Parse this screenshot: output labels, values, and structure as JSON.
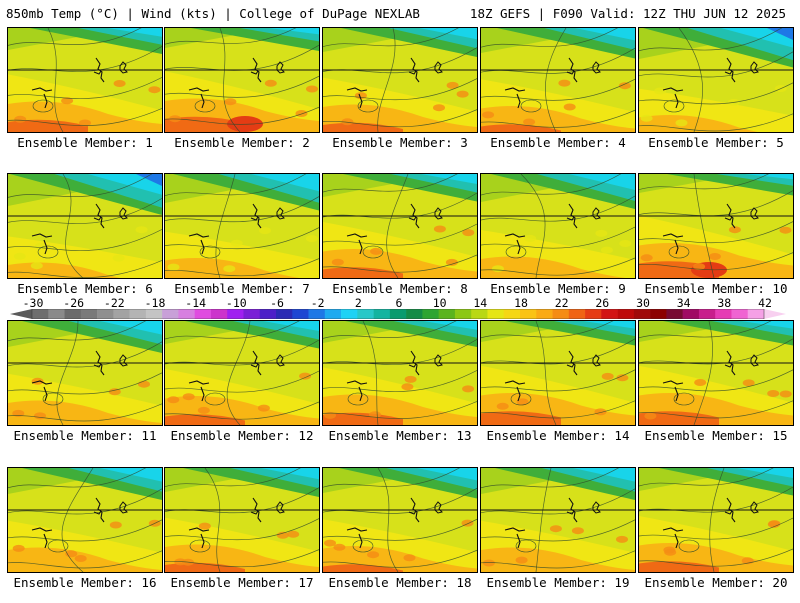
{
  "header": {
    "left_text": "850mb Temp (°C) | Wind (kts) | College of DuPage NEXLAB",
    "right_text": "18Z GEFS | F090 Valid: 12Z THU JUN 12 2025"
  },
  "members": [
    {
      "label": "Ensemble Member: 1",
      "warm": 0.8
    },
    {
      "label": "Ensemble Member: 2",
      "warm": 0.9
    },
    {
      "label": "Ensemble Member: 3",
      "warm": 0.7
    },
    {
      "label": "Ensemble Member: 4",
      "warm": 0.65
    },
    {
      "label": "Ensemble Member: 5",
      "warm": 0.35
    },
    {
      "label": "Ensemble Member: 6",
      "warm": 0.3
    },
    {
      "label": "Ensemble Member: 7",
      "warm": 0.45
    },
    {
      "label": "Ensemble Member: 8",
      "warm": 0.75
    },
    {
      "label": "Ensemble Member: 9",
      "warm": 0.5
    },
    {
      "label": "Ensemble Member: 10",
      "warm": 0.95
    },
    {
      "label": "Ensemble Member: 11",
      "warm": 0.6
    },
    {
      "label": "Ensemble Member: 12",
      "warm": 0.75
    },
    {
      "label": "Ensemble Member: 13",
      "warm": 0.8
    },
    {
      "label": "Ensemble Member: 14",
      "warm": 0.85
    },
    {
      "label": "Ensemble Member: 15",
      "warm": 0.85
    },
    {
      "label": "Ensemble Member: 16",
      "warm": 0.6
    },
    {
      "label": "Ensemble Member: 17",
      "warm": 0.7
    },
    {
      "label": "Ensemble Member: 18",
      "warm": 0.65
    },
    {
      "label": "Ensemble Member: 19",
      "warm": 0.6
    },
    {
      "label": "Ensemble Member: 20",
      "warm": 0.75
    }
  ],
  "scale": {
    "tick_labels": [
      "-30",
      "-26",
      "-22",
      "-18",
      "-14",
      "-10",
      "-6",
      "-2",
      "2",
      "6",
      "10",
      "14",
      "18",
      "22",
      "26",
      "30",
      "34",
      "38",
      "42"
    ],
    "bins": [
      "#6e6e6e",
      "#8a8a8a",
      "#6b6b6b",
      "#7a7a7a",
      "#8f8f8f",
      "#a3a3a3",
      "#b4b4b4",
      "#c4c4c4",
      "#c8a0d8",
      "#d77fe0",
      "#e04ce0",
      "#cc33cc",
      "#a020f0",
      "#7a1fd6",
      "#4c1fc8",
      "#2a2ab4",
      "#1e46d2",
      "#1e78e6",
      "#1eaaf0",
      "#1ed2f5",
      "#28c8c8",
      "#14b4a0",
      "#0a9b6e",
      "#148c46",
      "#2ea532",
      "#5ab41e",
      "#8cc814",
      "#b9d814",
      "#e6e614",
      "#f5d714",
      "#fac314",
      "#faaa14",
      "#f58c14",
      "#f06414",
      "#e63c14",
      "#d21414",
      "#be0a0a",
      "#a00a0a",
      "#8c0000",
      "#780a32",
      "#a00a64",
      "#c81e8c",
      "#e63cb4",
      "#f064d2",
      "#f5a0e6"
    ]
  }
}
